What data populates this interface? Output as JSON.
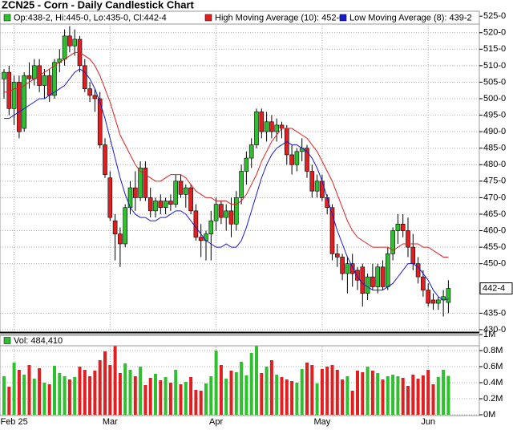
{
  "chart_data": {
    "type": "candlestick",
    "title": "ZCN25 - Corn - Daily Candlestick Chart",
    "ohlc_label": "Op:438-2, Hi:445-0, Lo:435-0, Cl:442-4",
    "categories": [
      null,
      null,
      "Feb 25",
      null,
      null,
      null,
      null,
      null,
      null,
      null,
      null,
      null,
      null,
      null,
      null,
      null,
      null,
      null,
      null,
      null,
      null,
      "Mar",
      null,
      null,
      null,
      null,
      null,
      null,
      null,
      null,
      null,
      null,
      null,
      null,
      null,
      null,
      null,
      null,
      null,
      null,
      null,
      null,
      "Apr",
      null,
      null,
      null,
      null,
      null,
      null,
      null,
      null,
      null,
      null,
      null,
      null,
      null,
      null,
      null,
      null,
      null,
      null,
      null,
      null,
      "May",
      null,
      null,
      null,
      null,
      null,
      null,
      null,
      null,
      null,
      null,
      null,
      null,
      null,
      null,
      null,
      null,
      null,
      null,
      null,
      null,
      "Jun",
      null,
      null,
      null,
      null
    ],
    "open": [
      506,
      508,
      497,
      505,
      491,
      507,
      506,
      510,
      504,
      507,
      501,
      511,
      512,
      519,
      516,
      518,
      510,
      503,
      501,
      500,
      486,
      476,
      463,
      459,
      456,
      467,
      473,
      470,
      479,
      470,
      466,
      469,
      467,
      469,
      468,
      475,
      471,
      473,
      466,
      458,
      457,
      459,
      463,
      468,
      464,
      466,
      462,
      470,
      478,
      482,
      486,
      496,
      490,
      493,
      490,
      492,
      491,
      483,
      480,
      484,
      485,
      478,
      472,
      475,
      470,
      467,
      453,
      452,
      447,
      450,
      448,
      449,
      441,
      446,
      443,
      449,
      443,
      453,
      460,
      462,
      460,
      455,
      450,
      446,
      442,
      439,
      438,
      439,
      438.25
    ],
    "high": [
      509,
      510,
      507,
      507,
      508,
      511,
      512,
      512,
      509,
      509,
      512,
      515,
      521,
      522,
      521,
      519,
      512,
      505,
      503,
      502,
      488,
      478,
      465,
      461,
      468,
      475,
      478,
      481,
      481,
      473,
      470,
      471,
      470,
      471,
      477,
      477,
      474,
      474,
      468,
      462,
      460,
      466,
      470,
      469,
      468,
      470,
      472,
      480,
      484,
      488,
      497,
      497,
      496,
      495,
      494,
      493,
      492,
      486,
      485,
      488,
      486,
      480,
      477,
      477,
      471,
      468,
      456,
      453,
      452,
      453,
      449,
      450,
      447,
      450,
      450,
      451,
      455,
      461,
      465,
      465,
      464,
      459,
      452,
      448,
      444,
      441,
      440,
      442,
      445
    ],
    "low": [
      500,
      495,
      492,
      488,
      490,
      503,
      504,
      502,
      500,
      499,
      500,
      508,
      510,
      514,
      513,
      508,
      502,
      499,
      496,
      485,
      476,
      463,
      451,
      449,
      455,
      465,
      466,
      469,
      469,
      464,
      464,
      465,
      465,
      466,
      467,
      470,
      467,
      465,
      457,
      452,
      451,
      451,
      460,
      462,
      460,
      458,
      460,
      468,
      474,
      479,
      485,
      488,
      487,
      488,
      487,
      488,
      480,
      477,
      478,
      481,
      476,
      470,
      470,
      469,
      465,
      451,
      449,
      445,
      441,
      443,
      442,
      437,
      439,
      442,
      441,
      442,
      442,
      451,
      456,
      458,
      452,
      448,
      444,
      440,
      437,
      436,
      436,
      434,
      435
    ],
    "close": [
      508,
      497,
      505,
      490,
      507,
      506,
      510,
      504,
      507,
      501,
      511,
      512,
      519,
      516,
      518,
      510,
      503,
      501,
      500,
      486,
      477,
      464,
      459,
      456,
      467,
      473,
      470,
      479,
      470,
      466,
      469,
      467,
      469,
      468,
      475,
      471,
      473,
      466,
      458,
      457,
      459,
      463,
      468,
      464,
      466,
      462,
      470,
      478,
      482,
      486,
      496,
      490,
      493,
      490,
      492,
      491,
      483,
      480,
      484,
      485,
      478,
      472,
      475,
      470,
      467,
      453,
      452,
      447,
      450,
      447,
      445,
      441,
      446,
      443,
      449,
      443,
      453,
      460,
      462,
      460,
      455,
      450,
      446,
      442,
      438,
      438,
      439,
      440,
      442.5
    ],
    "up_color": "#2ec02e",
    "down_color": "#e02020",
    "ylim": [
      429.5,
      526.5
    ],
    "yticks": [
      {
        "value": 525,
        "label": "525-0"
      },
      {
        "value": 520,
        "label": "520-0"
      },
      {
        "value": 515,
        "label": "515-0"
      },
      {
        "value": 510,
        "label": "510-0"
      },
      {
        "value": 505,
        "label": "505-0"
      },
      {
        "value": 500,
        "label": "500-0"
      },
      {
        "value": 495,
        "label": "495-0"
      },
      {
        "value": 490,
        "label": "490-0"
      },
      {
        "value": 485,
        "label": "485-0"
      },
      {
        "value": 480,
        "label": "480-0"
      },
      {
        "value": 475,
        "label": "475-0"
      },
      {
        "value": 470,
        "label": "470-0"
      },
      {
        "value": 465,
        "label": "465-0"
      },
      {
        "value": 460,
        "label": "460-0"
      },
      {
        "value": 455,
        "label": "455-0"
      },
      {
        "value": 450,
        "label": "450-0"
      },
      {
        "value": 435,
        "label": "435-0"
      },
      {
        "value": 430,
        "label": "430-0"
      }
    ],
    "last_price": {
      "value": 442.5,
      "label": "442-4"
    },
    "grid": true,
    "series": [
      {
        "name": "High Moving Average (10): 452-0",
        "color": "#e02020",
        "values": [
          502,
          502,
          503,
          503,
          504,
          505,
          506,
          507,
          508,
          509,
          510,
          511,
          512,
          513,
          514,
          514,
          513,
          512,
          510,
          507,
          503,
          499,
          494,
          489,
          486,
          483,
          480,
          478,
          477,
          476,
          475,
          475,
          476,
          477,
          477,
          477,
          476,
          474,
          472,
          471,
          470,
          470,
          469,
          469,
          469,
          468,
          468,
          469,
          471,
          474,
          477,
          481,
          484,
          487,
          489,
          491,
          491,
          491,
          490,
          489,
          488,
          486,
          484,
          481,
          478,
          475,
          471,
          467,
          463,
          460,
          458,
          457,
          456,
          455,
          455,
          455,
          455,
          454,
          455,
          456,
          456,
          456,
          456,
          455,
          455,
          454,
          453,
          452,
          452
        ]
      },
      {
        "name": "Low Moving Average (8): 439-2",
        "color": "#1a1ad0",
        "values": [
          494,
          494,
          495,
          496,
          497,
          498,
          499,
          500,
          500,
          501,
          502,
          503,
          504,
          506,
          508,
          509,
          508,
          506,
          503,
          499,
          494,
          488,
          482,
          476,
          471,
          467,
          465,
          464,
          464,
          463,
          463,
          464,
          464,
          465,
          466,
          466,
          465,
          463,
          461,
          459,
          457,
          456,
          455,
          455,
          456,
          455,
          455,
          457,
          461,
          466,
          471,
          476,
          480,
          483,
          485,
          486,
          487,
          486,
          486,
          485,
          484,
          482,
          479,
          475,
          470,
          465,
          460,
          456,
          452,
          449,
          446,
          444,
          443,
          442,
          442,
          442,
          443,
          444,
          446,
          448,
          450,
          450,
          449,
          447,
          445,
          442,
          440,
          439,
          439.25
        ]
      }
    ],
    "volume": {
      "name": "Vol: 484,410",
      "values": [
        480000,
        350000,
        650000,
        560000,
        500000,
        620000,
        450000,
        580000,
        400000,
        380000,
        610000,
        520000,
        480000,
        440000,
        470000,
        600000,
        560000,
        480000,
        550000,
        680000,
        790000,
        620000,
        930000,
        520000,
        640000,
        560000,
        480000,
        600000,
        370000,
        460000,
        510000,
        430000,
        470000,
        400000,
        560000,
        380000,
        410000,
        470000,
        310000,
        300000,
        390000,
        480000,
        800000,
        620000,
        450000,
        550000,
        530000,
        660000,
        490000,
        770000,
        880000,
        520000,
        600000,
        680000,
        500000,
        470000,
        440000,
        420000,
        400000,
        570000,
        650000,
        620000,
        390000,
        570000,
        600000,
        620000,
        560000,
        440000,
        480000,
        300000,
        550000,
        530000,
        600000,
        550000,
        520000,
        440000,
        480000,
        500000,
        480000,
        460000,
        360000,
        500000,
        450000,
        490000,
        560000,
        380000,
        470000,
        560000,
        484410
      ],
      "ylim": [
        0,
        1000000
      ],
      "yticks": [
        {
          "value": 0,
          "label": "0M"
        },
        {
          "value": 200000,
          "label": "0.2M"
        },
        {
          "value": 400000,
          "label": "0.4M"
        },
        {
          "value": 600000,
          "label": "0.6M"
        },
        {
          "value": 800000,
          "label": "0.8M"
        },
        {
          "value": 1000000,
          "label": "1M"
        }
      ]
    }
  }
}
